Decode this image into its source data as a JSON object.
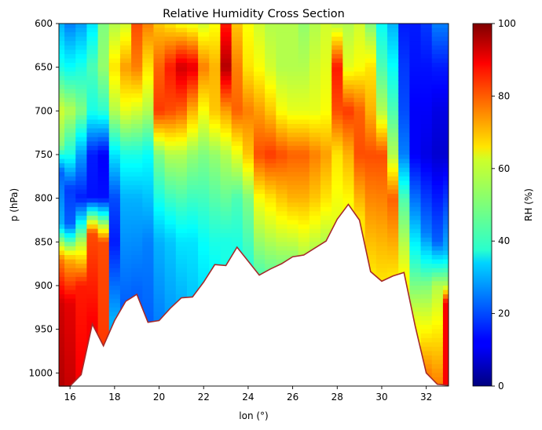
{
  "chart_data": {
    "type": "heatmap",
    "title": "Relative Humidity Cross Section",
    "xlabel": "lon (°)",
    "ylabel": "p (hPa)",
    "colorbar_label": "RH (%)",
    "colormap": "jet",
    "xlim": [
      15.5,
      33.0
    ],
    "ylim": [
      1015,
      600
    ],
    "clim": [
      0,
      100
    ],
    "x_ticks": [
      16,
      18,
      20,
      22,
      24,
      26,
      28,
      30,
      32
    ],
    "y_ticks": [
      600,
      650,
      700,
      750,
      800,
      850,
      900,
      950,
      1000
    ],
    "colorbar_ticks": [
      0,
      20,
      40,
      60,
      80,
      100
    ],
    "columns": [
      {
        "lon": 15.5,
        "surface_p": 1015,
        "rh": [
          {
            "p": 600,
            "v": 30
          },
          {
            "p": 650,
            "v": 40
          },
          {
            "p": 700,
            "v": 58
          },
          {
            "p": 740,
            "v": 50
          },
          {
            "p": 770,
            "v": 22
          },
          {
            "p": 830,
            "v": 30
          },
          {
            "p": 870,
            "v": 75
          },
          {
            "p": 920,
            "v": 92
          },
          {
            "p": 1015,
            "v": 95
          }
        ]
      },
      {
        "lon": 16.0,
        "surface_p": 1015,
        "rh": [
          {
            "p": 600,
            "v": 25
          },
          {
            "p": 650,
            "v": 38
          },
          {
            "p": 700,
            "v": 55
          },
          {
            "p": 750,
            "v": 40
          },
          {
            "p": 790,
            "v": 18
          },
          {
            "p": 830,
            "v": 22
          },
          {
            "p": 870,
            "v": 70
          },
          {
            "p": 920,
            "v": 90
          },
          {
            "p": 1015,
            "v": 93
          }
        ]
      },
      {
        "lon": 16.5,
        "surface_p": 1002,
        "rh": [
          {
            "p": 600,
            "v": 28
          },
          {
            "p": 650,
            "v": 40
          },
          {
            "p": 700,
            "v": 50
          },
          {
            "p": 750,
            "v": 28
          },
          {
            "p": 800,
            "v": 15
          },
          {
            "p": 850,
            "v": 55
          },
          {
            "p": 900,
            "v": 85
          },
          {
            "p": 1002,
            "v": 88
          }
        ]
      },
      {
        "lon": 17.0,
        "surface_p": 944,
        "rh": [
          {
            "p": 600,
            "v": 35
          },
          {
            "p": 650,
            "v": 45
          },
          {
            "p": 700,
            "v": 40
          },
          {
            "p": 750,
            "v": 15
          },
          {
            "p": 800,
            "v": 14
          },
          {
            "p": 840,
            "v": 80
          },
          {
            "p": 944,
            "v": 88
          }
        ]
      },
      {
        "lon": 17.5,
        "surface_p": 969,
        "rh": [
          {
            "p": 600,
            "v": 50
          },
          {
            "p": 650,
            "v": 52
          },
          {
            "p": 700,
            "v": 42
          },
          {
            "p": 750,
            "v": 12
          },
          {
            "p": 800,
            "v": 14
          },
          {
            "p": 850,
            "v": 80
          },
          {
            "p": 969,
            "v": 82
          }
        ]
      },
      {
        "lon": 18.0,
        "surface_p": 940,
        "rh": [
          {
            "p": 600,
            "v": 55
          },
          {
            "p": 650,
            "v": 65
          },
          {
            "p": 700,
            "v": 55
          },
          {
            "p": 750,
            "v": 35
          },
          {
            "p": 800,
            "v": 20
          },
          {
            "p": 850,
            "v": 15
          },
          {
            "p": 940,
            "v": 30
          }
        ]
      },
      {
        "lon": 18.5,
        "surface_p": 918,
        "rh": [
          {
            "p": 600,
            "v": 58
          },
          {
            "p": 650,
            "v": 72
          },
          {
            "p": 700,
            "v": 60
          },
          {
            "p": 750,
            "v": 40
          },
          {
            "p": 800,
            "v": 30
          },
          {
            "p": 918,
            "v": 22
          }
        ]
      },
      {
        "lon": 19.0,
        "surface_p": 910,
        "rh": [
          {
            "p": 600,
            "v": 80
          },
          {
            "p": 650,
            "v": 75
          },
          {
            "p": 700,
            "v": 58
          },
          {
            "p": 750,
            "v": 40
          },
          {
            "p": 800,
            "v": 30
          },
          {
            "p": 910,
            "v": 22
          }
        ]
      },
      {
        "lon": 19.5,
        "surface_p": 942,
        "rh": [
          {
            "p": 600,
            "v": 75
          },
          {
            "p": 650,
            "v": 65
          },
          {
            "p": 700,
            "v": 55
          },
          {
            "p": 750,
            "v": 38
          },
          {
            "p": 850,
            "v": 25
          },
          {
            "p": 942,
            "v": 22
          }
        ]
      },
      {
        "lon": 20.0,
        "surface_p": 940,
        "rh": [
          {
            "p": 600,
            "v": 68
          },
          {
            "p": 650,
            "v": 78
          },
          {
            "p": 700,
            "v": 82
          },
          {
            "p": 750,
            "v": 50
          },
          {
            "p": 850,
            "v": 30
          },
          {
            "p": 940,
            "v": 25
          }
        ]
      },
      {
        "lon": 20.5,
        "surface_p": 926,
        "rh": [
          {
            "p": 600,
            "v": 65
          },
          {
            "p": 650,
            "v": 85
          },
          {
            "p": 700,
            "v": 80
          },
          {
            "p": 750,
            "v": 55
          },
          {
            "p": 850,
            "v": 32
          },
          {
            "p": 926,
            "v": 28
          }
        ]
      },
      {
        "lon": 21.0,
        "surface_p": 914,
        "rh": [
          {
            "p": 600,
            "v": 62
          },
          {
            "p": 650,
            "v": 92
          },
          {
            "p": 700,
            "v": 78
          },
          {
            "p": 750,
            "v": 55
          },
          {
            "p": 850,
            "v": 35
          },
          {
            "p": 914,
            "v": 30
          }
        ]
      },
      {
        "lon": 21.5,
        "surface_p": 913,
        "rh": [
          {
            "p": 600,
            "v": 60
          },
          {
            "p": 650,
            "v": 90
          },
          {
            "p": 700,
            "v": 70
          },
          {
            "p": 750,
            "v": 52
          },
          {
            "p": 850,
            "v": 35
          },
          {
            "p": 913,
            "v": 32
          }
        ]
      },
      {
        "lon": 22.0,
        "surface_p": 896,
        "rh": [
          {
            "p": 600,
            "v": 58
          },
          {
            "p": 650,
            "v": 75
          },
          {
            "p": 700,
            "v": 62
          },
          {
            "p": 750,
            "v": 50
          },
          {
            "p": 850,
            "v": 38
          },
          {
            "p": 896,
            "v": 35
          }
        ]
      },
      {
        "lon": 22.5,
        "surface_p": 876,
        "rh": [
          {
            "p": 600,
            "v": 62
          },
          {
            "p": 650,
            "v": 70
          },
          {
            "p": 700,
            "v": 68
          },
          {
            "p": 750,
            "v": 52
          },
          {
            "p": 850,
            "v": 40
          },
          {
            "p": 876,
            "v": 38
          }
        ]
      },
      {
        "lon": 23.0,
        "surface_p": 877,
        "rh": [
          {
            "p": 600,
            "v": 85
          },
          {
            "p": 650,
            "v": 95
          },
          {
            "p": 700,
            "v": 72
          },
          {
            "p": 750,
            "v": 55
          },
          {
            "p": 850,
            "v": 40
          },
          {
            "p": 877,
            "v": 40
          }
        ]
      },
      {
        "lon": 23.5,
        "surface_p": 856,
        "rh": [
          {
            "p": 600,
            "v": 68
          },
          {
            "p": 650,
            "v": 75
          },
          {
            "p": 700,
            "v": 78
          },
          {
            "p": 750,
            "v": 60
          },
          {
            "p": 800,
            "v": 45
          },
          {
            "p": 856,
            "v": 40
          }
        ]
      },
      {
        "lon": 24.0,
        "surface_p": 872,
        "rh": [
          {
            "p": 600,
            "v": 62
          },
          {
            "p": 650,
            "v": 65
          },
          {
            "p": 700,
            "v": 75
          },
          {
            "p": 750,
            "v": 68
          },
          {
            "p": 800,
            "v": 50
          },
          {
            "p": 872,
            "v": 42
          }
        ]
      },
      {
        "lon": 24.5,
        "surface_p": 888,
        "rh": [
          {
            "p": 600,
            "v": 58
          },
          {
            "p": 650,
            "v": 62
          },
          {
            "p": 700,
            "v": 72
          },
          {
            "p": 750,
            "v": 80
          },
          {
            "p": 800,
            "v": 62
          },
          {
            "p": 888,
            "v": 45
          }
        ]
      },
      {
        "lon": 25.0,
        "surface_p": 881,
        "rh": [
          {
            "p": 600,
            "v": 55
          },
          {
            "p": 650,
            "v": 58
          },
          {
            "p": 700,
            "v": 68
          },
          {
            "p": 750,
            "v": 82
          },
          {
            "p": 800,
            "v": 65
          },
          {
            "p": 881,
            "v": 48
          }
        ]
      },
      {
        "lon": 25.5,
        "surface_p": 875,
        "rh": [
          {
            "p": 600,
            "v": 55
          },
          {
            "p": 650,
            "v": 55
          },
          {
            "p": 700,
            "v": 62
          },
          {
            "p": 750,
            "v": 80
          },
          {
            "p": 800,
            "v": 68
          },
          {
            "p": 875,
            "v": 50
          }
        ]
      },
      {
        "lon": 26.0,
        "surface_p": 867,
        "rh": [
          {
            "p": 600,
            "v": 55
          },
          {
            "p": 650,
            "v": 55
          },
          {
            "p": 700,
            "v": 60
          },
          {
            "p": 750,
            "v": 78
          },
          {
            "p": 800,
            "v": 70
          },
          {
            "p": 867,
            "v": 52
          }
        ]
      },
      {
        "lon": 26.5,
        "surface_p": 865,
        "rh": [
          {
            "p": 600,
            "v": 52
          },
          {
            "p": 650,
            "v": 55
          },
          {
            "p": 700,
            "v": 60
          },
          {
            "p": 750,
            "v": 78
          },
          {
            "p": 800,
            "v": 70
          },
          {
            "p": 865,
            "v": 55
          }
        ]
      },
      {
        "lon": 27.0,
        "surface_p": 857,
        "rh": [
          {
            "p": 600,
            "v": 55
          },
          {
            "p": 650,
            "v": 58
          },
          {
            "p": 700,
            "v": 60
          },
          {
            "p": 750,
            "v": 75
          },
          {
            "p": 800,
            "v": 68
          },
          {
            "p": 857,
            "v": 55
          }
        ]
      },
      {
        "lon": 27.5,
        "surface_p": 849,
        "rh": [
          {
            "p": 600,
            "v": 58
          },
          {
            "p": 650,
            "v": 60
          },
          {
            "p": 700,
            "v": 62
          },
          {
            "p": 750,
            "v": 72
          },
          {
            "p": 800,
            "v": 65
          },
          {
            "p": 849,
            "v": 55
          }
        ]
      },
      {
        "lon": 28.0,
        "surface_p": 824,
        "rh": [
          {
            "p": 600,
            "v": 55
          },
          {
            "p": 650,
            "v": 85
          },
          {
            "p": 700,
            "v": 80
          },
          {
            "p": 750,
            "v": 65
          },
          {
            "p": 824,
            "v": 60
          }
        ]
      },
      {
        "lon": 28.5,
        "surface_p": 807,
        "rh": [
          {
            "p": 600,
            "v": 55
          },
          {
            "p": 650,
            "v": 60
          },
          {
            "p": 700,
            "v": 82
          },
          {
            "p": 750,
            "v": 70
          },
          {
            "p": 807,
            "v": 62
          }
        ]
      },
      {
        "lon": 29.0,
        "surface_p": 825,
        "rh": [
          {
            "p": 600,
            "v": 58
          },
          {
            "p": 650,
            "v": 62
          },
          {
            "p": 700,
            "v": 78
          },
          {
            "p": 750,
            "v": 80
          },
          {
            "p": 825,
            "v": 65
          }
        ]
      },
      {
        "lon": 29.5,
        "surface_p": 884,
        "rh": [
          {
            "p": 600,
            "v": 50
          },
          {
            "p": 650,
            "v": 65
          },
          {
            "p": 700,
            "v": 70
          },
          {
            "p": 750,
            "v": 80
          },
          {
            "p": 884,
            "v": 65
          }
        ]
      },
      {
        "lon": 30.0,
        "surface_p": 895,
        "rh": [
          {
            "p": 600,
            "v": 38
          },
          {
            "p": 650,
            "v": 45
          },
          {
            "p": 700,
            "v": 55
          },
          {
            "p": 750,
            "v": 80
          },
          {
            "p": 895,
            "v": 65
          }
        ]
      },
      {
        "lon": 30.5,
        "surface_p": 889,
        "rh": [
          {
            "p": 600,
            "v": 30
          },
          {
            "p": 650,
            "v": 38
          },
          {
            "p": 700,
            "v": 45
          },
          {
            "p": 750,
            "v": 55
          },
          {
            "p": 800,
            "v": 78
          },
          {
            "p": 889,
            "v": 65
          }
        ]
      },
      {
        "lon": 31.0,
        "surface_p": 885,
        "rh": [
          {
            "p": 600,
            "v": 15
          },
          {
            "p": 650,
            "v": 18
          },
          {
            "p": 700,
            "v": 20
          },
          {
            "p": 750,
            "v": 25
          },
          {
            "p": 800,
            "v": 45
          },
          {
            "p": 885,
            "v": 62
          }
        ]
      },
      {
        "lon": 31.5,
        "surface_p": 946,
        "rh": [
          {
            "p": 600,
            "v": 15
          },
          {
            "p": 650,
            "v": 14
          },
          {
            "p": 700,
            "v": 12
          },
          {
            "p": 750,
            "v": 12
          },
          {
            "p": 820,
            "v": 28
          },
          {
            "p": 946,
            "v": 62
          }
        ]
      },
      {
        "lon": 32.0,
        "surface_p": 1000,
        "rh": [
          {
            "p": 600,
            "v": 18
          },
          {
            "p": 650,
            "v": 14
          },
          {
            "p": 700,
            "v": 12
          },
          {
            "p": 750,
            "v": 10
          },
          {
            "p": 840,
            "v": 25
          },
          {
            "p": 900,
            "v": 50
          },
          {
            "p": 1000,
            "v": 75
          }
        ]
      },
      {
        "lon": 32.5,
        "surface_p": 1013,
        "rh": [
          {
            "p": 600,
            "v": 25
          },
          {
            "p": 650,
            "v": 15
          },
          {
            "p": 700,
            "v": 10
          },
          {
            "p": 750,
            "v": 8
          },
          {
            "p": 850,
            "v": 22
          },
          {
            "p": 900,
            "v": 55
          },
          {
            "p": 1013,
            "v": 75
          }
        ]
      },
      {
        "lon": 33.0,
        "surface_p": 1014,
        "rh": [
          {
            "p": 600,
            "v": 25
          },
          {
            "p": 650,
            "v": 15
          },
          {
            "p": 700,
            "v": 10
          },
          {
            "p": 750,
            "v": 8
          },
          {
            "p": 860,
            "v": 30
          },
          {
            "p": 900,
            "v": 55
          },
          {
            "p": 920,
            "v": 88
          },
          {
            "p": 1014,
            "v": 88
          }
        ]
      }
    ],
    "surface_line_color": "#a52a2a"
  }
}
